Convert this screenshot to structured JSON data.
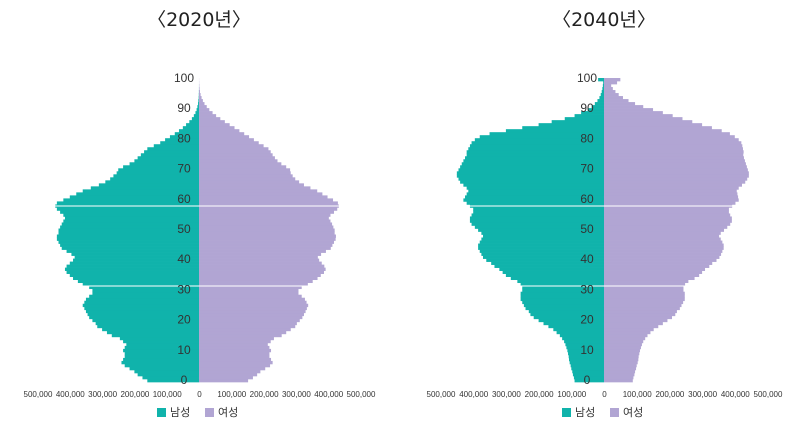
{
  "colors": {
    "male": "#10b3ab",
    "female": "#b1a5d3"
  },
  "legend": {
    "male": "남성",
    "female": "여성"
  },
  "chart_data": [
    {
      "type": "bar",
      "orientation": "horizontal-population-pyramid",
      "title": "〈2020년〉",
      "ylim": [
        0,
        100
      ],
      "y_ticks": [
        "0",
        "10",
        "20",
        "30",
        "40",
        "50",
        "60",
        "70",
        "80",
        "90",
        "100"
      ],
      "xlim": [
        -500000,
        500000
      ],
      "x_ticks": [
        "500,000",
        "400,000",
        "300,000",
        "200,000",
        "100,000",
        "0",
        "100,000",
        "200,000",
        "300,000",
        "400,000",
        "500,000"
      ],
      "ages": [
        0,
        1,
        2,
        3,
        4,
        5,
        6,
        7,
        8,
        9,
        10,
        11,
        12,
        13,
        14,
        15,
        16,
        17,
        18,
        19,
        20,
        21,
        22,
        23,
        24,
        25,
        26,
        27,
        28,
        29,
        30,
        31,
        32,
        33,
        34,
        35,
        36,
        37,
        38,
        39,
        40,
        41,
        42,
        43,
        44,
        45,
        46,
        47,
        48,
        49,
        50,
        51,
        52,
        53,
        54,
        55,
        56,
        57,
        58,
        59,
        60,
        61,
        62,
        63,
        64,
        65,
        66,
        67,
        68,
        69,
        70,
        71,
        72,
        73,
        74,
        75,
        76,
        77,
        78,
        79,
        80,
        81,
        82,
        83,
        84,
        85,
        86,
        87,
        88,
        89,
        90,
        91,
        92,
        93,
        94,
        95,
        96,
        97,
        98,
        99,
        100
      ],
      "series": [
        {
          "name": "남성",
          "values": [
            160000,
            175000,
            190000,
            200000,
            215000,
            230000,
            240000,
            235000,
            230000,
            230000,
            235000,
            230000,
            225000,
            235000,
            245000,
            270000,
            285000,
            300000,
            315000,
            320000,
            330000,
            340000,
            345000,
            350000,
            355000,
            360000,
            355000,
            350000,
            340000,
            330000,
            330000,
            340000,
            360000,
            375000,
            390000,
            400000,
            410000,
            415000,
            410000,
            400000,
            390000,
            385000,
            395000,
            410000,
            425000,
            430000,
            435000,
            440000,
            440000,
            435000,
            435000,
            430000,
            425000,
            420000,
            415000,
            420000,
            430000,
            440000,
            445000,
            440000,
            420000,
            400000,
            380000,
            360000,
            335000,
            310000,
            290000,
            275000,
            265000,
            255000,
            250000,
            235000,
            215000,
            200000,
            190000,
            180000,
            170000,
            160000,
            140000,
            120000,
            105000,
            90000,
            75000,
            62000,
            50000,
            40000,
            30000,
            22000,
            16000,
            11000,
            7500,
            5000,
            3000,
            2000,
            1000,
            600,
            300,
            150,
            80,
            40,
            20
          ]
        },
        {
          "name": "여성",
          "values": [
            152000,
            167000,
            180000,
            190000,
            205000,
            220000,
            228000,
            223000,
            218000,
            218000,
            223000,
            218000,
            213000,
            222000,
            232000,
            256000,
            270000,
            284000,
            298000,
            303000,
            312000,
            320000,
            325000,
            330000,
            334000,
            338000,
            333000,
            328000,
            318000,
            308000,
            308000,
            318000,
            337000,
            352000,
            367000,
            377000,
            387000,
            392000,
            388000,
            380000,
            372000,
            368000,
            378000,
            393000,
            408000,
            413000,
            418000,
            423000,
            424000,
            420000,
            420000,
            416000,
            412000,
            407000,
            402000,
            407000,
            418000,
            428000,
            433000,
            430000,
            415000,
            398000,
            382000,
            366000,
            345000,
            325000,
            310000,
            298000,
            290000,
            284000,
            282000,
            270000,
            255000,
            243000,
            235000,
            228000,
            222000,
            215000,
            200000,
            185000,
            170000,
            155000,
            140000,
            125000,
            110000,
            95000,
            80000,
            66000,
            53000,
            42000,
            32000,
            24000,
            17000,
            12000,
            8000,
            5000,
            3000,
            1800,
            1000,
            500,
            250
          ]
        }
      ]
    },
    {
      "type": "bar",
      "orientation": "horizontal-population-pyramid",
      "title": "〈2040년〉",
      "ylim": [
        0,
        100
      ],
      "y_ticks": [
        "0",
        "10",
        "20",
        "30",
        "40",
        "50",
        "60",
        "70",
        "80",
        "90",
        "100"
      ],
      "xlim": [
        -500000,
        500000
      ],
      "x_ticks": [
        "500,000",
        "400,000",
        "300,000",
        "200,000",
        "100,000",
        "0",
        "100,000",
        "200,000",
        "300,000",
        "400,000",
        "500,000"
      ],
      "ages": [
        0,
        1,
        2,
        3,
        4,
        5,
        6,
        7,
        8,
        9,
        10,
        11,
        12,
        13,
        14,
        15,
        16,
        17,
        18,
        19,
        20,
        21,
        22,
        23,
        24,
        25,
        26,
        27,
        28,
        29,
        30,
        31,
        32,
        33,
        34,
        35,
        36,
        37,
        38,
        39,
        40,
        41,
        42,
        43,
        44,
        45,
        46,
        47,
        48,
        49,
        50,
        51,
        52,
        53,
        54,
        55,
        56,
        57,
        58,
        59,
        60,
        61,
        62,
        63,
        64,
        65,
        66,
        67,
        68,
        69,
        70,
        71,
        72,
        73,
        74,
        75,
        76,
        77,
        78,
        79,
        80,
        81,
        82,
        83,
        84,
        85,
        86,
        87,
        88,
        89,
        90,
        91,
        92,
        93,
        94,
        95,
        96,
        97,
        98,
        99,
        100
      ],
      "series": [
        {
          "name": "남성",
          "values": [
            90000,
            92000,
            95000,
            97000,
            100000,
            102000,
            105000,
            107000,
            108000,
            110000,
            112000,
            115000,
            118000,
            122000,
            128000,
            135000,
            145000,
            155000,
            170000,
            185000,
            200000,
            215000,
            225000,
            230000,
            240000,
            245000,
            250000,
            255000,
            255000,
            255000,
            250000,
            250000,
            255000,
            265000,
            285000,
            300000,
            310000,
            320000,
            335000,
            345000,
            360000,
            370000,
            375000,
            380000,
            385000,
            385000,
            380000,
            375000,
            370000,
            375000,
            385000,
            395000,
            405000,
            410000,
            410000,
            405000,
            400000,
            400000,
            410000,
            420000,
            430000,
            425000,
            420000,
            415000,
            420000,
            430000,
            440000,
            445000,
            450000,
            450000,
            445000,
            440000,
            435000,
            430000,
            425000,
            420000,
            420000,
            415000,
            410000,
            405000,
            395000,
            380000,
            350000,
            300000,
            250000,
            200000,
            160000,
            120000,
            90000,
            70000,
            50000,
            38000,
            28000,
            20000,
            14000,
            10000,
            7000,
            5000,
            3500,
            2500,
            18000
          ]
        },
        {
          "name": "여성",
          "values": [
            88000,
            90000,
            93000,
            95000,
            98000,
            100000,
            103000,
            105000,
            106000,
            108000,
            110000,
            113000,
            116000,
            120000,
            126000,
            133000,
            142000,
            152000,
            166000,
            180000,
            194000,
            208000,
            218000,
            223000,
            232000,
            237000,
            242000,
            247000,
            247000,
            247000,
            243000,
            243000,
            248000,
            258000,
            277000,
            291000,
            300000,
            309000,
            322000,
            331000,
            344000,
            353000,
            358000,
            362000,
            366000,
            366000,
            362000,
            357000,
            352000,
            357000,
            367000,
            377000,
            386000,
            391000,
            391000,
            386000,
            382000,
            382000,
            392000,
            402000,
            412000,
            410000,
            408000,
            406000,
            412000,
            422000,
            432000,
            438000,
            443000,
            443000,
            440000,
            437000,
            434000,
            431000,
            428000,
            426000,
            427000,
            425000,
            423000,
            420000,
            412000,
            400000,
            385000,
            360000,
            330000,
            300000,
            270000,
            240000,
            210000,
            180000,
            150000,
            120000,
            95000,
            75000,
            58000,
            45000,
            35000,
            27000,
            22000,
            40000,
            50000
          ]
        }
      ]
    }
  ]
}
